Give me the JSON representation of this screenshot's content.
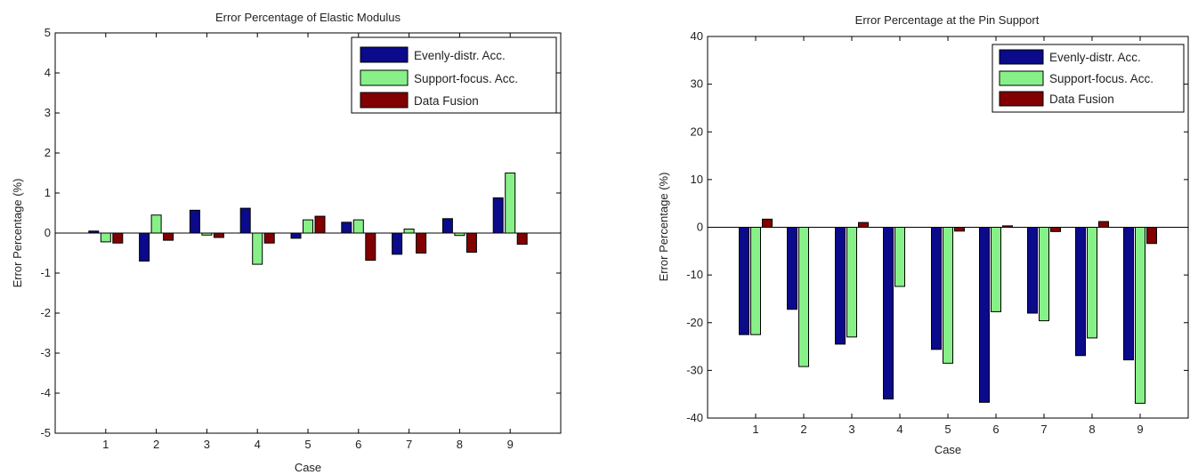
{
  "colors": {
    "evenly": "#0a0a8a",
    "support": "#88f088",
    "fusion": "#820000"
  },
  "charts": [
    {
      "chart_data": {
        "type": "bar",
        "title": "Error Percentage of Elastic Modulus",
        "xlabel": "Case",
        "ylabel": "Error Percentage (%)",
        "categories": [
          "1",
          "2",
          "3",
          "4",
          "5",
          "6",
          "7",
          "8",
          "9"
        ],
        "ylim": [
          -5,
          5
        ],
        "yticks": [
          "-5",
          "-4",
          "-3",
          "-2",
          "-1",
          "0",
          "1",
          "2",
          "3",
          "4",
          "5"
        ],
        "legend_position": "top-right",
        "series": [
          {
            "name": "Evenly-distr. Acc.",
            "values": [
              0.05,
              -0.7,
              0.57,
              0.62,
              -0.13,
              0.27,
              -0.53,
              0.36,
              0.88
            ]
          },
          {
            "name": "Support-focus. Acc.",
            "values": [
              -0.22,
              0.45,
              -0.05,
              -0.78,
              0.33,
              0.33,
              0.1,
              -0.06,
              1.5
            ]
          },
          {
            "name": "Data Fusion",
            "values": [
              -0.25,
              -0.18,
              -0.11,
              -0.25,
              0.42,
              -0.68,
              -0.5,
              -0.48,
              -0.28
            ]
          }
        ]
      }
    },
    {
      "chart_data": {
        "type": "bar",
        "title": "Error Percentage at the Pin Support",
        "xlabel": "Case",
        "ylabel": "Error Percentage (%)",
        "categories": [
          "1",
          "2",
          "3",
          "4",
          "5",
          "6",
          "7",
          "8",
          "9"
        ],
        "ylim": [
          -40,
          40
        ],
        "yticks": [
          "-40",
          "-30",
          "-20",
          "-10",
          "0",
          "10",
          "20",
          "30",
          "40"
        ],
        "legend_position": "top-right",
        "series": [
          {
            "name": "Evenly-distr. Acc.",
            "values": [
              -22.5,
              -17.2,
              -24.5,
              -36.0,
              -25.6,
              -36.7,
              -18.0,
              -26.9,
              -27.8
            ]
          },
          {
            "name": "Support-focus. Acc.",
            "values": [
              -22.5,
              -29.2,
              -23.0,
              -12.4,
              -28.5,
              -17.7,
              -19.6,
              -23.2,
              -36.9
            ]
          },
          {
            "name": "Data Fusion",
            "values": [
              1.7,
              0.0,
              1.0,
              0.0,
              -0.8,
              0.3,
              -0.9,
              1.2,
              -3.4
            ]
          }
        ]
      }
    }
  ]
}
